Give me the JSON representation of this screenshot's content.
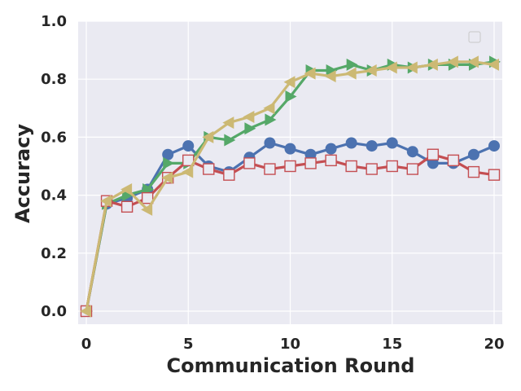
{
  "chart_data": {
    "type": "line",
    "title": "",
    "xlabel": "Communication Round",
    "ylabel": "Accuracy",
    "xlim": [
      -0.4,
      20.4
    ],
    "ylim": [
      -0.045,
      1.0
    ],
    "x_ticks": [
      0,
      5,
      10,
      15,
      20
    ],
    "y_ticks": [
      "0.0",
      "0.2",
      "0.4",
      "0.6",
      "0.8",
      "1.0"
    ],
    "grid": true,
    "legend": "top-right",
    "x": [
      0,
      1,
      2,
      3,
      4,
      5,
      6,
      7,
      8,
      9,
      10,
      11,
      12,
      13,
      14,
      15,
      16,
      17,
      18,
      19,
      20
    ],
    "series": [
      {
        "color": "#4c72b0",
        "marker": "circle",
        "values": [
          0.0,
          0.37,
          0.39,
          0.42,
          0.54,
          0.57,
          0.5,
          0.48,
          0.53,
          0.58,
          0.56,
          0.54,
          0.56,
          0.58,
          0.57,
          0.58,
          0.55,
          0.51,
          0.51,
          0.54,
          0.57
        ]
      },
      {
        "color": "#55a868",
        "marker": "triangle-right",
        "values": [
          0.0,
          0.37,
          0.4,
          0.42,
          0.51,
          0.51,
          0.6,
          0.59,
          0.63,
          0.66,
          0.74,
          0.83,
          0.83,
          0.85,
          0.83,
          0.85,
          0.84,
          0.85,
          0.85,
          0.85,
          0.86
        ]
      },
      {
        "color": "#c44e52",
        "marker": "square-open",
        "values": [
          0.0,
          0.38,
          0.36,
          0.39,
          0.46,
          0.52,
          0.49,
          0.47,
          0.51,
          0.49,
          0.5,
          0.51,
          0.52,
          0.5,
          0.49,
          0.5,
          0.49,
          0.54,
          0.52,
          0.48,
          0.47
        ]
      },
      {
        "color": "#ccb974",
        "marker": "triangle-left",
        "values": [
          0.0,
          0.38,
          0.42,
          0.35,
          0.46,
          0.48,
          0.6,
          0.65,
          0.67,
          0.7,
          0.79,
          0.82,
          0.81,
          0.82,
          0.83,
          0.84,
          0.84,
          0.85,
          0.86,
          0.86,
          0.85
        ]
      }
    ]
  }
}
